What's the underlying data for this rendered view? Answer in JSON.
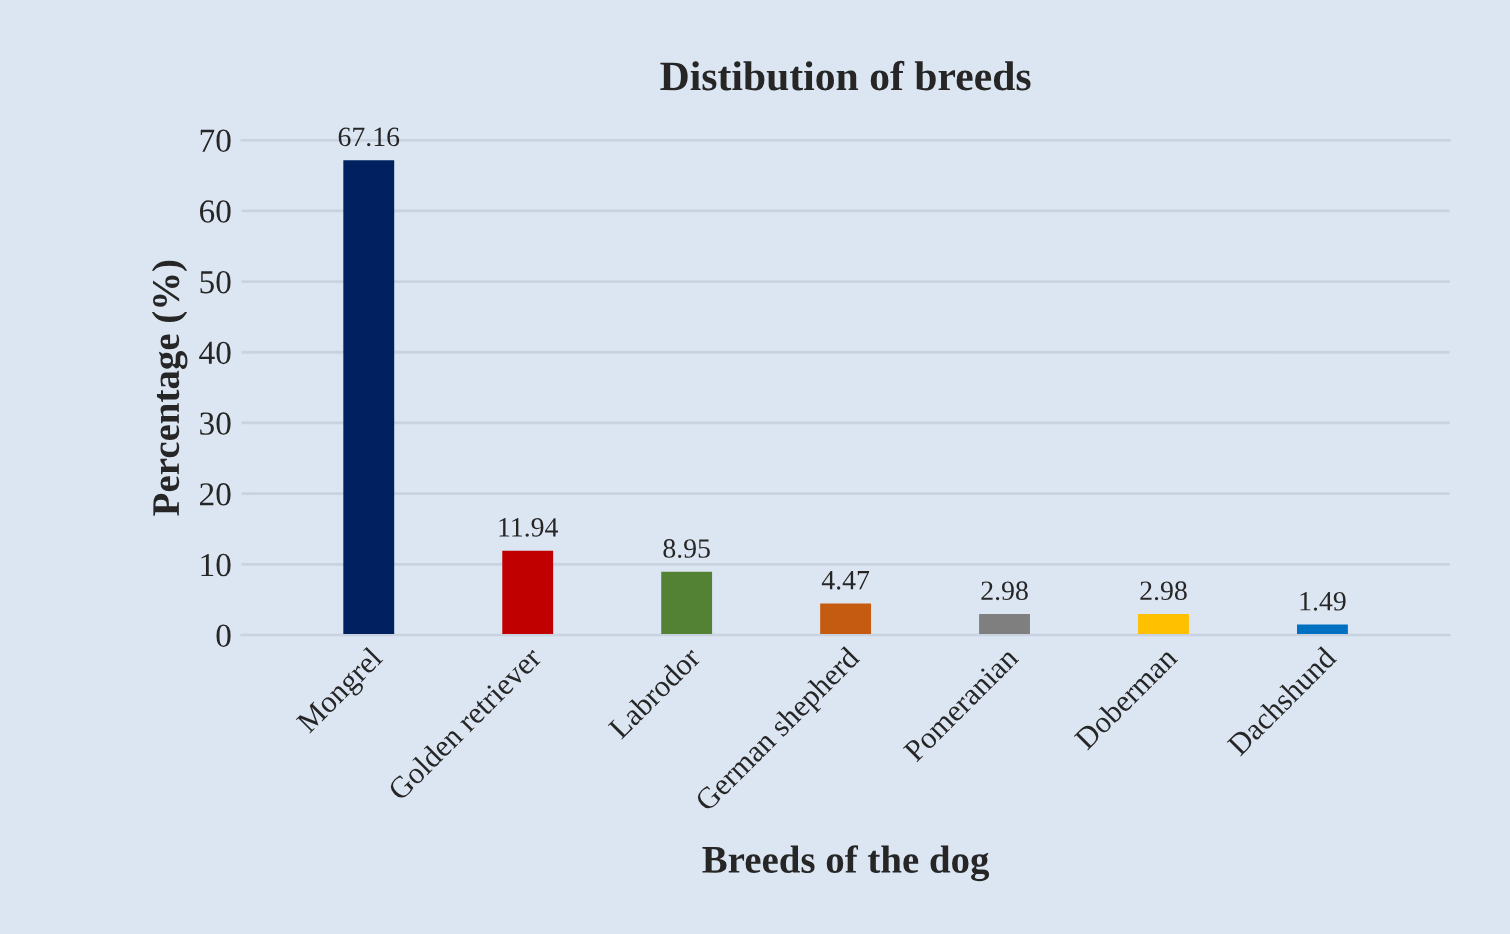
{
  "chart_data": {
    "type": "bar",
    "title": "Distibution of breeds",
    "xlabel": "Breeds of the dog",
    "ylabel": "Percentage (%)",
    "categories": [
      "Mongrel",
      "Golden retriever",
      "Labrodor",
      "German shepherd",
      "Pomeranian",
      "Doberman",
      "Dachshund"
    ],
    "values": [
      67.16,
      11.94,
      8.95,
      4.47,
      2.98,
      2.98,
      1.49
    ],
    "colors": [
      "#002060",
      "#c00000",
      "#548235",
      "#c55a11",
      "#7f7f7f",
      "#ffc000",
      "#0070c0"
    ],
    "ylim": [
      0,
      70
    ],
    "yticks": [
      0,
      10,
      20,
      30,
      40,
      50,
      60,
      70
    ],
    "grid": "y",
    "data_labels": true
  }
}
